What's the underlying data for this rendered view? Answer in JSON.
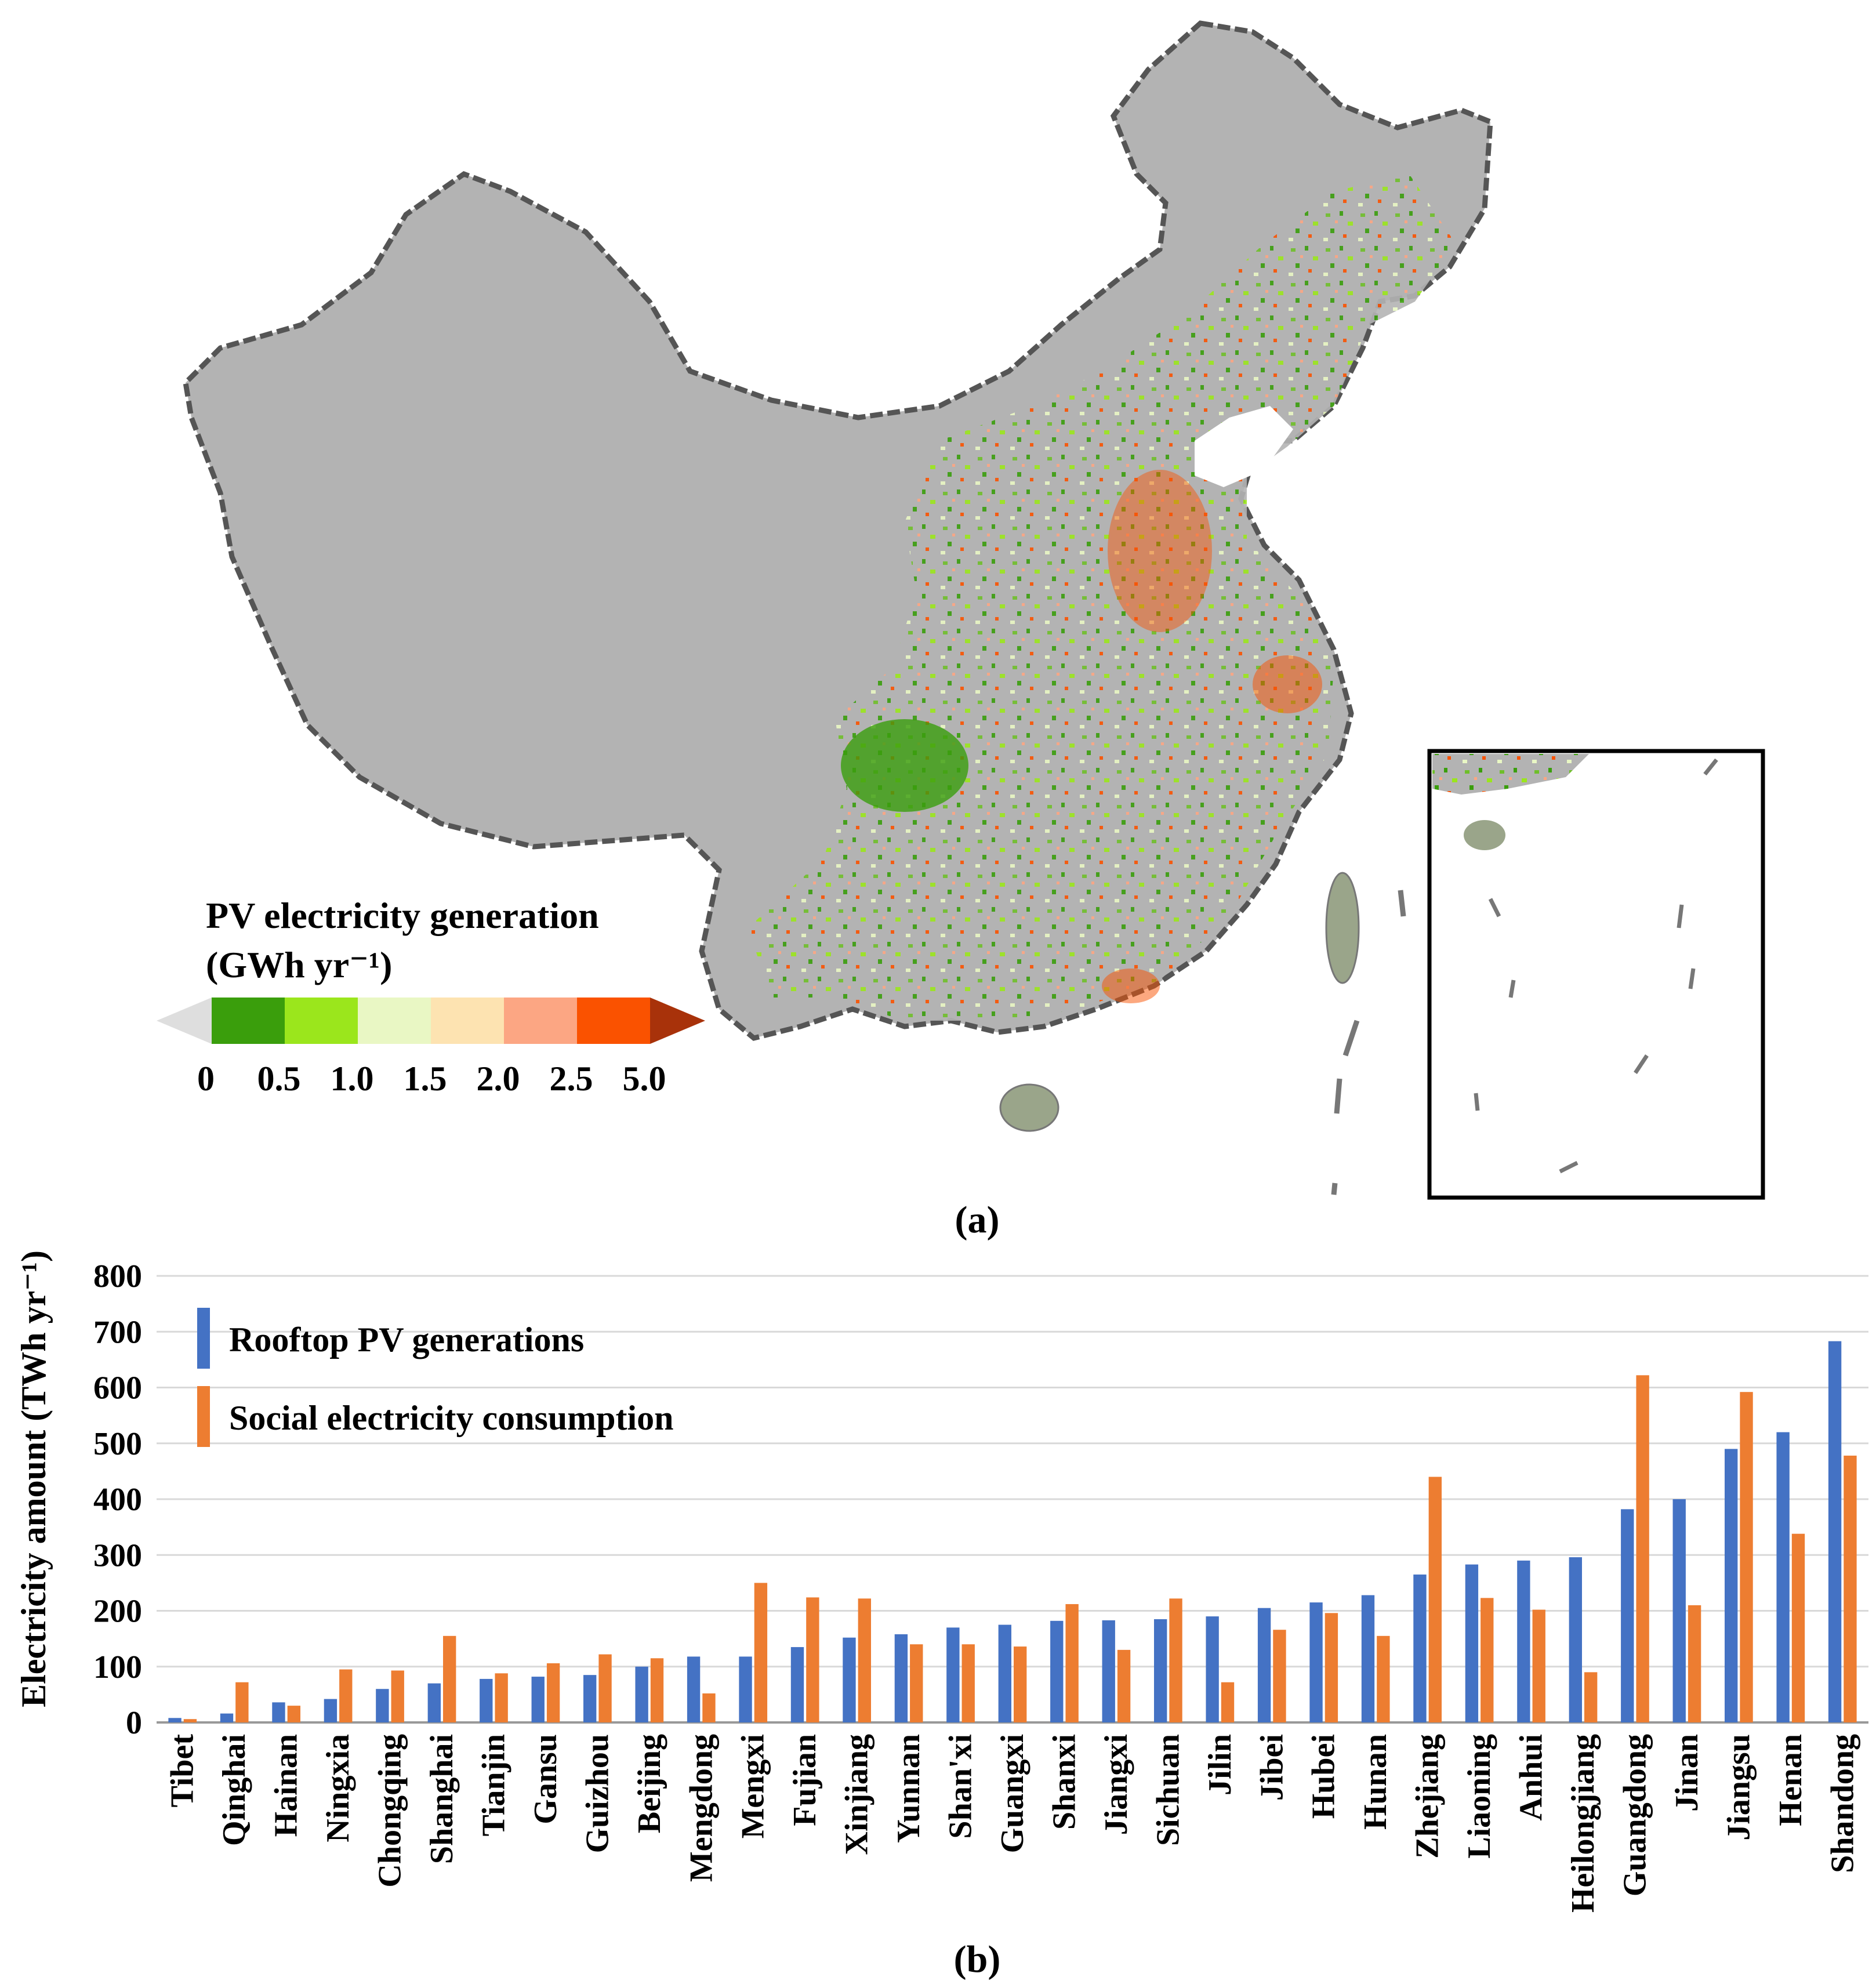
{
  "map": {
    "legend_title_line1": "PV electricity generation",
    "legend_title_line2": "(GWh yr⁻¹)",
    "legend_ticks": [
      "0",
      "0.5",
      "1.0",
      "1.5",
      "2.0",
      "2.5",
      "5.0"
    ],
    "legend_colors": [
      "#dedede",
      "#3a9e0c",
      "#9be61c",
      "#e9f7c4",
      "#fde3b1",
      "#fca683",
      "#fa5200",
      "#a8320a"
    ],
    "panel_label": "(a)",
    "land_color": "#b3b3b3",
    "border_color": "#555555"
  },
  "chart_data": {
    "type": "bar",
    "panel_label": "(b)",
    "title": "",
    "xlabel": "",
    "ylabel": "Electricity amount (TWh yr⁻¹)",
    "ylim": [
      0,
      800
    ],
    "yticks": [
      0,
      100,
      200,
      300,
      400,
      500,
      600,
      700,
      800
    ],
    "grid": true,
    "legend_position": "top-left",
    "categories": [
      "Tibet",
      "Qinghai",
      "Hainan",
      "Ningxia",
      "Chongqing",
      "Shanghai",
      "Tianjin",
      "Gansu",
      "Guizhou",
      "Beijing",
      "Mengdong",
      "Mengxi",
      "Fujian",
      "Xinjiang",
      "Yunnan",
      "Shan'xi",
      "Guangxi",
      "Shanxi",
      "Jiangxi",
      "Sichuan",
      "Jilin",
      "Jibei",
      "Hubei",
      "Hunan",
      "Zhejiang",
      "Liaoning",
      "Anhui",
      "Heilongjiang",
      "Guangdong",
      "Jinan",
      "Jiangsu",
      "Henan",
      "Shandong"
    ],
    "series": [
      {
        "name": "Rooftop PV generations",
        "color": "#4472c4",
        "values": [
          8,
          16,
          36,
          42,
          60,
          70,
          78,
          82,
          85,
          100,
          118,
          118,
          135,
          152,
          158,
          170,
          175,
          182,
          183,
          185,
          190,
          205,
          215,
          228,
          265,
          283,
          290,
          296,
          382,
          400,
          490,
          520,
          683
        ]
      },
      {
        "name": "Social electricity consumption",
        "color": "#ed7d31",
        "values": [
          6,
          72,
          30,
          95,
          93,
          155,
          88,
          106,
          122,
          115,
          52,
          250,
          224,
          222,
          140,
          140,
          136,
          212,
          130,
          222,
          72,
          166,
          196,
          155,
          440,
          223,
          202,
          90,
          622,
          210,
          592,
          338,
          478
        ]
      }
    ]
  }
}
